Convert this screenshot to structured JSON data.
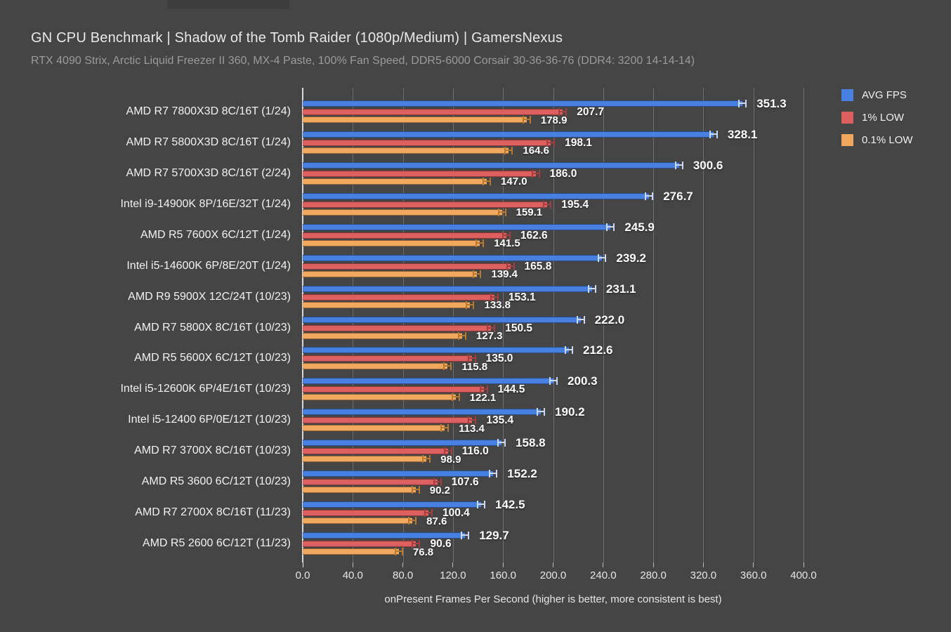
{
  "page": {
    "background_color": "#454545",
    "top_strip_color": "#3c3c3c"
  },
  "header": {
    "title": "GN CPU Benchmark | Shadow of the Tomb Raider (1080p/Medium) | GamersNexus",
    "subtitle": "RTX 4090 Strix, Arctic Liquid Freezer II 360, MX-4 Paste, 100% Fan Speed, DDR5-6000 Corsair 30-36-36-76 (DDR4: 3200 14-14-14)"
  },
  "chart_data": {
    "type": "bar",
    "orientation": "horizontal",
    "title": "GN CPU Benchmark | Shadow of the Tomb Raider (1080p/Medium) | GamersNexus",
    "subtitle": "RTX 4090 Strix, Arctic Liquid Freezer II 360, MX-4 Paste, 100% Fan Speed, DDR5-6000 Corsair 30-36-36-76 (DDR4: 3200 14-14-14)",
    "xlabel": "onPresent Frames Per Second (higher is better, more consistent is best)",
    "xlim": [
      0,
      400
    ],
    "xticks": [
      0,
      40,
      80,
      120,
      160,
      200,
      240,
      280,
      320,
      360,
      400
    ],
    "xtick_decimals": 1,
    "grid": "vertical",
    "legend_position": "top-right",
    "error_bars": true,
    "categories": [
      "AMD R7 7800X3D 8C/16T (1/24)",
      "AMD R7 5800X3D 8C/16T (1/24)",
      "AMD R7 5700X3D 8C/16T (2/24)",
      "Intel i9-14900K 8P/16E/32T (1/24)",
      "AMD R5 7600X 6C/12T (1/24)",
      "Intel i5-14600K 6P/8E/20T (1/24)",
      "AMD R9 5900X 12C/24T (10/23)",
      "AMD R7 5800X 8C/16T (10/23)",
      "AMD R5 5600X 6C/12T (10/23)",
      "Intel i5-12600K 6P/4E/16T (10/23)",
      "Intel i5-12400 6P/0E/12T (10/23)",
      "AMD R7 3700X 8C/16T (10/23)",
      "AMD R5 3600 6C/12T (10/23)",
      "AMD R7 2700X 8C/16T (11/23)",
      "AMD R5 2600 6C/12T (11/23)"
    ],
    "series": [
      {
        "name": "AVG FPS",
        "color": "#4780e0",
        "whisker_color": "#ccd9f4",
        "values": [
          351.3,
          328.1,
          300.6,
          276.7,
          245.9,
          239.2,
          231.1,
          222.0,
          212.6,
          200.3,
          190.2,
          158.8,
          152.2,
          142.5,
          129.7
        ]
      },
      {
        "name": "1% LOW",
        "color": "#dd5f5f",
        "whisker_color": "#a33f3f",
        "values": [
          207.7,
          198.1,
          186.0,
          195.4,
          162.6,
          165.8,
          153.1,
          150.5,
          135.0,
          144.5,
          135.4,
          116.0,
          107.6,
          100.4,
          90.6
        ]
      },
      {
        "name": "0.1% LOW",
        "color": "#f0a85e",
        "whisker_color": "#b87a30",
        "values": [
          178.9,
          164.6,
          147.0,
          159.1,
          141.5,
          139.4,
          133.8,
          127.3,
          115.8,
          122.1,
          113.4,
          98.9,
          90.2,
          87.6,
          76.8
        ]
      }
    ]
  }
}
